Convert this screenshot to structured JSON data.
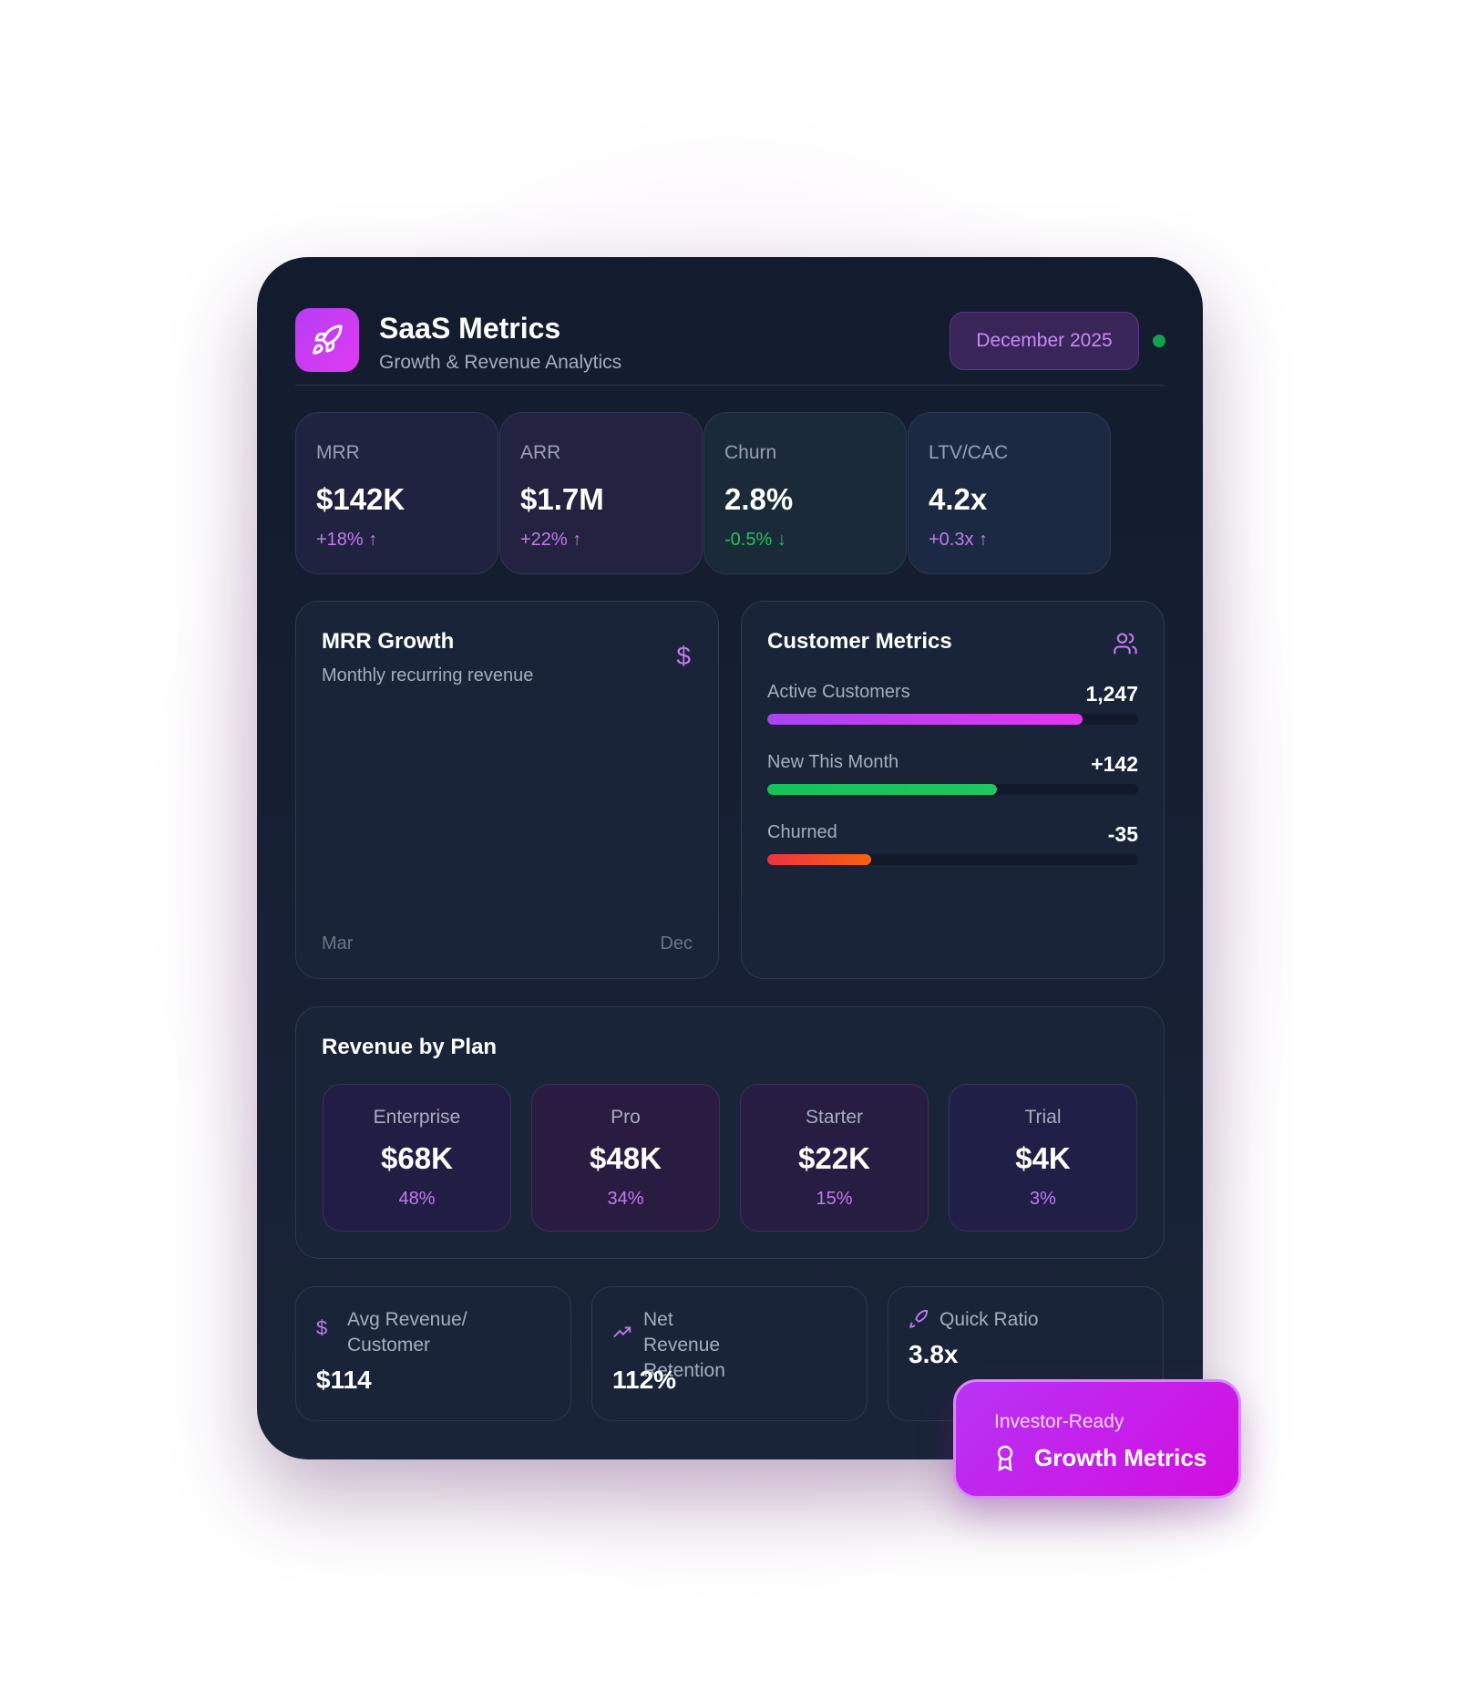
{
  "header": {
    "title": "SaaS Metrics",
    "subtitle": "Growth & Revenue Analytics",
    "period": "December 2025",
    "status_color": "#10a24c"
  },
  "kpis": [
    {
      "label": "MRR",
      "value": "$142K",
      "change": "+18%",
      "direction": "up",
      "color": "#c27af0"
    },
    {
      "label": "ARR",
      "value": "$1.7M",
      "change": "+22%",
      "direction": "up",
      "color": "#c27af0"
    },
    {
      "label": "Churn",
      "value": "2.8%",
      "change": "-0.5%",
      "direction": "down",
      "color": "#22c55e"
    },
    {
      "label": "LTV/CAC",
      "value": "4.2x",
      "change": "+0.3x",
      "direction": "up",
      "color": "#c27af0"
    }
  ],
  "mrr_growth": {
    "title": "MRR Growth",
    "subtitle": "Monthly recurring revenue",
    "icon": "dollar-icon",
    "x_start": "Mar",
    "x_end": "Dec"
  },
  "customer_metrics": {
    "title": "Customer Metrics",
    "icon": "users-icon",
    "rows": [
      {
        "label": "Active Customers",
        "value": "1,247",
        "fill": 0.85,
        "colors": [
          "#a845f0",
          "#e535f0"
        ]
      },
      {
        "label": "New This Month",
        "value": "+142",
        "fill": 0.62,
        "colors": [
          "#16c25a",
          "#22c55e"
        ]
      },
      {
        "label": "Churned",
        "value": "-35",
        "fill": 0.28,
        "colors": [
          "#ef3340",
          "#f9600f"
        ]
      }
    ]
  },
  "revenue_by_plan": {
    "title": "Revenue by Plan",
    "plans": [
      {
        "name": "Enterprise",
        "value": "$68K",
        "percent": "48%"
      },
      {
        "name": "Pro",
        "value": "$48K",
        "percent": "34%"
      },
      {
        "name": "Starter",
        "value": "$22K",
        "percent": "15%"
      },
      {
        "name": "Trial",
        "value": "$4K",
        "percent": "3%"
      }
    ]
  },
  "bottom": [
    {
      "label": "Avg Revenue/ Customer",
      "value": "$114",
      "icon": "dollar-icon"
    },
    {
      "label": "Net Revenue Retention",
      "value": "112%",
      "icon": "trending-up-icon"
    },
    {
      "label": "Quick Ratio",
      "value": "3.8x",
      "icon": "rocket-icon"
    }
  ],
  "badge": {
    "kicker": "Investor-Ready",
    "title": "Growth Metrics",
    "icon": "award-icon"
  }
}
